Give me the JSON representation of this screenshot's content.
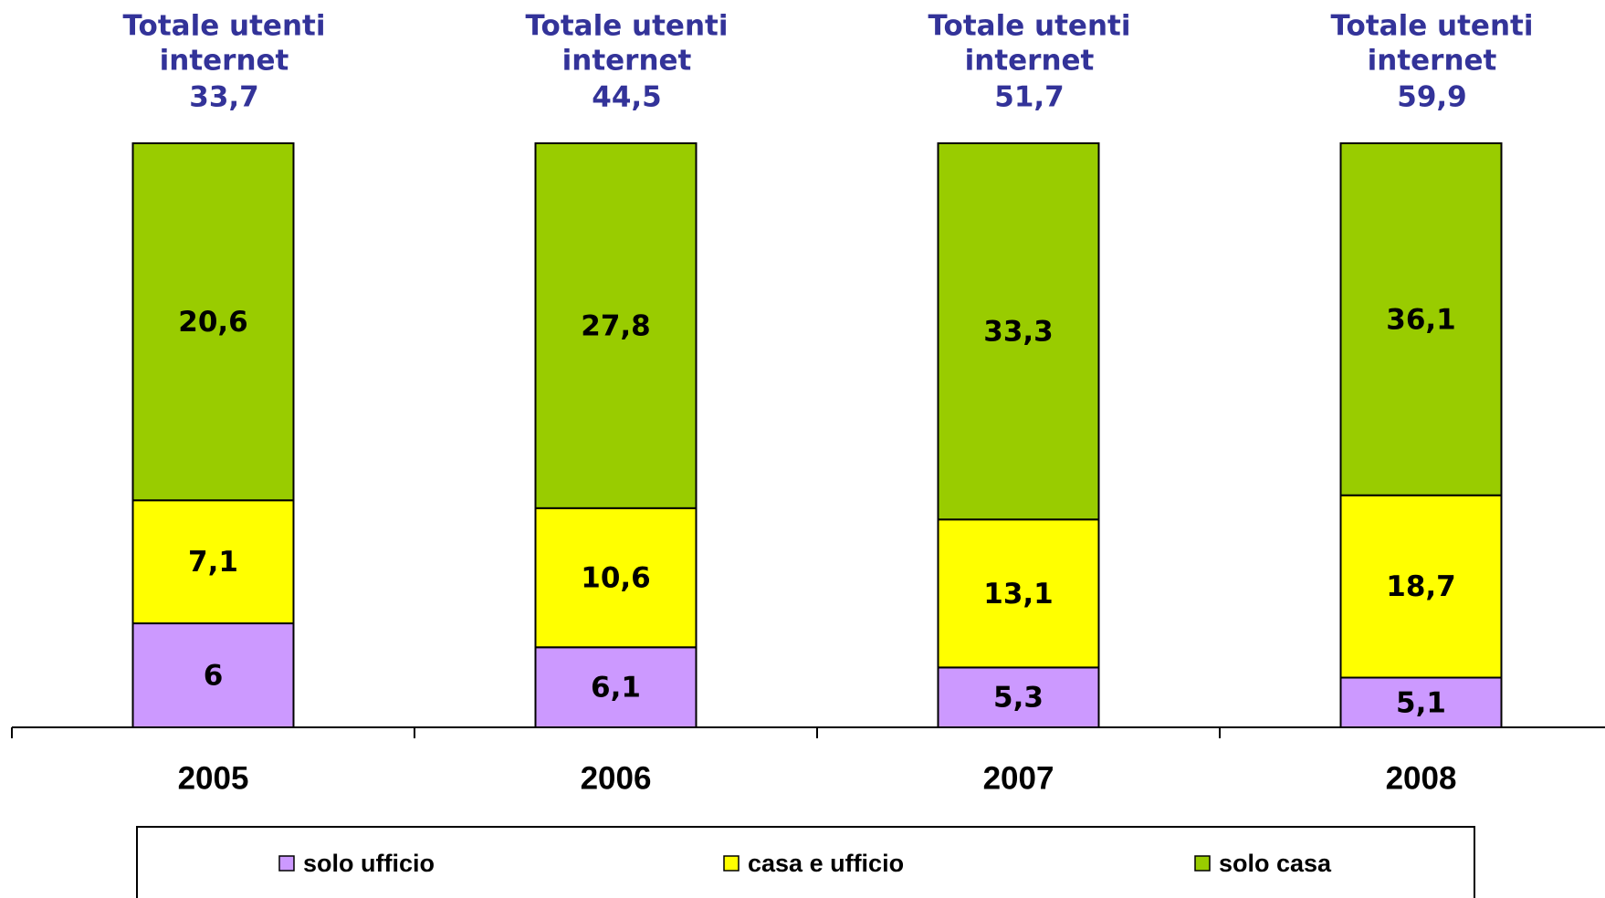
{
  "chart_data": {
    "type": "stacked_bar_100",
    "categories": [
      "2005",
      "2006",
      "2007",
      "2008"
    ],
    "series": [
      {
        "name": "solo ufficio",
        "color": "#cc99ff",
        "values": [
          6,
          6.1,
          5.3,
          5.1
        ],
        "value_labels": [
          "6",
          "6,1",
          "5,3",
          "5,1"
        ]
      },
      {
        "name": "casa e ufficio",
        "color": "#ffff00",
        "values": [
          7.1,
          10.6,
          13.1,
          18.7
        ],
        "value_labels": [
          "7,1",
          "10,6",
          "13,1",
          "18,7"
        ]
      },
      {
        "name": "solo casa",
        "color": "#99cc00",
        "values": [
          20.6,
          27.8,
          33.3,
          36.1
        ],
        "value_labels": [
          "20,6",
          "27,8",
          "33,3",
          "36,1"
        ]
      }
    ],
    "totals": {
      "title": [
        "Totale utenti",
        "internet"
      ],
      "values": [
        33.7,
        44.5,
        51.7,
        59.9
      ],
      "value_labels": [
        "33,7",
        "44,5",
        "51,7",
        "59,9"
      ]
    },
    "legend": "bottom"
  }
}
